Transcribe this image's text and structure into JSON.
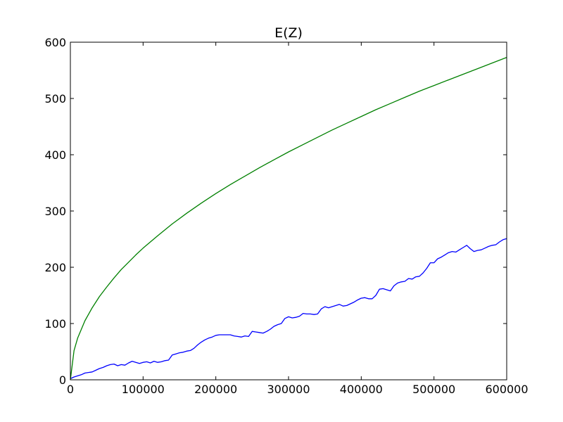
{
  "chart_data": {
    "type": "line",
    "title": "E(Z)",
    "xlabel": "",
    "ylabel": "",
    "xlim": [
      0,
      600000
    ],
    "ylim": [
      0,
      600
    ],
    "xticks": [
      0,
      100000,
      200000,
      300000,
      400000,
      500000,
      600000
    ],
    "yticks": [
      0,
      100,
      200,
      300,
      400,
      500,
      600
    ],
    "grid": false,
    "series": [
      {
        "color": "#0000ff",
        "points": [
          [
            0,
            2
          ],
          [
            5000,
            5
          ],
          [
            10000,
            7
          ],
          [
            15000,
            9
          ],
          [
            20000,
            12
          ],
          [
            30000,
            14
          ],
          [
            35000,
            17
          ],
          [
            40000,
            20
          ],
          [
            45000,
            22
          ],
          [
            50000,
            25
          ],
          [
            55000,
            27
          ],
          [
            60000,
            28
          ],
          [
            65000,
            25
          ],
          [
            70000,
            27
          ],
          [
            75000,
            26
          ],
          [
            80000,
            30
          ],
          [
            85000,
            33
          ],
          [
            90000,
            31
          ],
          [
            95000,
            29
          ],
          [
            100000,
            31
          ],
          [
            105000,
            32
          ],
          [
            110000,
            30
          ],
          [
            115000,
            33
          ],
          [
            120000,
            31
          ],
          [
            125000,
            32
          ],
          [
            130000,
            34
          ],
          [
            135000,
            35
          ],
          [
            140000,
            44
          ],
          [
            145000,
            46
          ],
          [
            150000,
            48
          ],
          [
            155000,
            49
          ],
          [
            160000,
            51
          ],
          [
            165000,
            52
          ],
          [
            170000,
            56
          ],
          [
            175000,
            62
          ],
          [
            180000,
            67
          ],
          [
            185000,
            71
          ],
          [
            190000,
            74
          ],
          [
            195000,
            76
          ],
          [
            200000,
            79
          ],
          [
            205000,
            80
          ],
          [
            210000,
            80
          ],
          [
            215000,
            80
          ],
          [
            220000,
            80
          ],
          [
            225000,
            78
          ],
          [
            230000,
            77
          ],
          [
            235000,
            76
          ],
          [
            240000,
            78
          ],
          [
            245000,
            77
          ],
          [
            250000,
            86
          ],
          [
            255000,
            85
          ],
          [
            260000,
            84
          ],
          [
            265000,
            83
          ],
          [
            270000,
            86
          ],
          [
            275000,
            90
          ],
          [
            280000,
            95
          ],
          [
            285000,
            98
          ],
          [
            290000,
            100
          ],
          [
            295000,
            109
          ],
          [
            300000,
            112
          ],
          [
            305000,
            110
          ],
          [
            310000,
            111
          ],
          [
            315000,
            113
          ],
          [
            320000,
            118
          ],
          [
            325000,
            117
          ],
          [
            330000,
            117
          ],
          [
            335000,
            116
          ],
          [
            340000,
            117
          ],
          [
            345000,
            126
          ],
          [
            350000,
            130
          ],
          [
            355000,
            128
          ],
          [
            360000,
            130
          ],
          [
            365000,
            132
          ],
          [
            370000,
            134
          ],
          [
            375000,
            131
          ],
          [
            380000,
            132
          ],
          [
            385000,
            135
          ],
          [
            390000,
            138
          ],
          [
            395000,
            142
          ],
          [
            400000,
            145
          ],
          [
            405000,
            146
          ],
          [
            410000,
            144
          ],
          [
            415000,
            144
          ],
          [
            420000,
            150
          ],
          [
            425000,
            161
          ],
          [
            430000,
            162
          ],
          [
            435000,
            160
          ],
          [
            440000,
            158
          ],
          [
            445000,
            167
          ],
          [
            450000,
            172
          ],
          [
            455000,
            174
          ],
          [
            460000,
            175
          ],
          [
            465000,
            180
          ],
          [
            470000,
            179
          ],
          [
            475000,
            183
          ],
          [
            480000,
            184
          ],
          [
            485000,
            190
          ],
          [
            490000,
            198
          ],
          [
            495000,
            208
          ],
          [
            500000,
            208
          ],
          [
            505000,
            215
          ],
          [
            510000,
            218
          ],
          [
            515000,
            222
          ],
          [
            520000,
            226
          ],
          [
            525000,
            228
          ],
          [
            530000,
            227
          ],
          [
            535000,
            231
          ],
          [
            540000,
            235
          ],
          [
            545000,
            239
          ],
          [
            550000,
            233
          ],
          [
            555000,
            228
          ],
          [
            560000,
            230
          ],
          [
            565000,
            231
          ],
          [
            570000,
            234
          ],
          [
            575000,
            237
          ],
          [
            580000,
            239
          ],
          [
            585000,
            240
          ],
          [
            590000,
            245
          ],
          [
            595000,
            249
          ],
          [
            600000,
            251
          ]
        ]
      },
      {
        "color": "#008000",
        "points": [
          [
            0,
            0
          ],
          [
            5000,
            52
          ],
          [
            10000,
            74
          ],
          [
            20000,
            105
          ],
          [
            30000,
            128
          ],
          [
            40000,
            148
          ],
          [
            50000,
            165
          ],
          [
            60000,
            181
          ],
          [
            70000,
            196
          ],
          [
            80000,
            209
          ],
          [
            90000,
            222
          ],
          [
            100000,
            234
          ],
          [
            120000,
            256
          ],
          [
            140000,
            277
          ],
          [
            160000,
            296
          ],
          [
            180000,
            314
          ],
          [
            200000,
            331
          ],
          [
            220000,
            347
          ],
          [
            240000,
            362
          ],
          [
            260000,
            377
          ],
          [
            280000,
            391
          ],
          [
            300000,
            405
          ],
          [
            320000,
            418
          ],
          [
            340000,
            431
          ],
          [
            360000,
            444
          ],
          [
            380000,
            456
          ],
          [
            400000,
            468
          ],
          [
            420000,
            480
          ],
          [
            440000,
            491
          ],
          [
            460000,
            502
          ],
          [
            480000,
            513
          ],
          [
            500000,
            523
          ],
          [
            520000,
            533
          ],
          [
            540000,
            543
          ],
          [
            560000,
            553
          ],
          [
            580000,
            563
          ],
          [
            600000,
            573
          ]
        ]
      }
    ]
  }
}
